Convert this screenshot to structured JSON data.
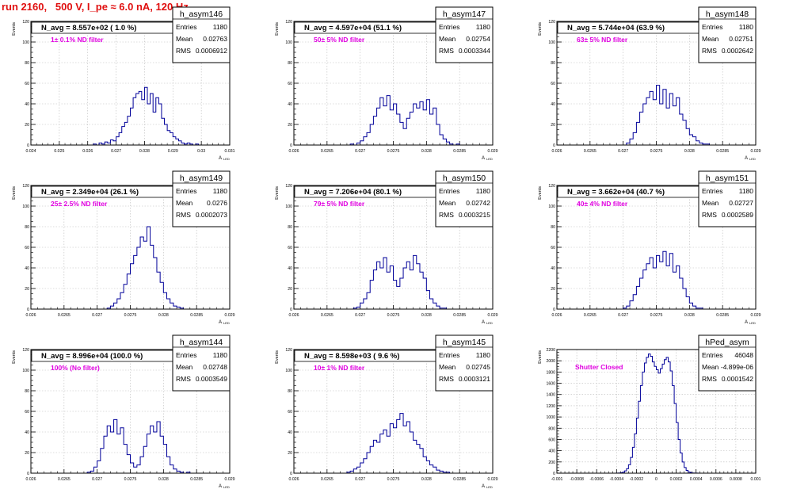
{
  "page": {
    "run_title": "run 2160,   500 V, I_pe ≈ 6.0 nA, 120 Hz"
  },
  "colors": {
    "histogram_line": "#000099",
    "annotation_magenta": "#e000e0",
    "title_red": "#e01010",
    "grid": "#bbbbbb"
  },
  "chart_data": [
    {
      "type": "histogram",
      "name": "h_asym146",
      "navg": "N_avg = 8.557e+02 ( 1.0 %)",
      "filter_label": "1± 0.1% ND filter",
      "stats": {
        "Entries": "1180",
        "Mean": "0.02763",
        "RMS": "0.0006912"
      },
      "stats_labels": [
        "Entries",
        "Mean",
        "RMS"
      ],
      "ylabel": "Events",
      "xlabel": "A",
      "xlabel_sub": "LED",
      "xlim": [
        0.024,
        0.031
      ],
      "ylim": [
        0,
        120
      ],
      "xticks": [
        "0.024",
        "0.025",
        "0.026",
        "0.027",
        "0.028",
        "0.029",
        "0.03",
        "0.031"
      ],
      "xtick_values": [
        0.024,
        0.025,
        0.026,
        0.027,
        0.028,
        0.029,
        0.03,
        0.031
      ],
      "yticks": [
        "0",
        "20",
        "40",
        "60",
        "80",
        "100",
        "120"
      ],
      "ytick_values": [
        0,
        20,
        40,
        60,
        80,
        100,
        120
      ],
      "bins": {
        "start": 0.024,
        "width": 0.0001,
        "values": [
          0,
          0,
          0,
          0,
          0,
          0,
          0,
          0,
          0,
          0,
          0,
          0,
          0,
          0,
          0,
          0,
          0,
          0,
          0,
          0,
          0,
          0,
          1,
          0,
          2,
          1,
          3,
          2,
          5,
          4,
          8,
          12,
          18,
          22,
          28,
          36,
          46,
          50,
          52,
          44,
          56,
          40,
          50,
          32,
          46,
          40,
          26,
          20,
          14,
          12,
          8,
          6,
          4,
          2,
          1,
          2,
          1,
          0,
          1,
          0,
          0,
          0,
          0,
          0,
          0,
          0,
          0,
          0,
          0,
          0
        ]
      }
    },
    {
      "type": "histogram",
      "name": "h_asym147",
      "navg": "N_avg = 4.597e+04 (51.1 %)",
      "filter_label": "50± 5% ND filter",
      "stats": {
        "Entries": "1180",
        "Mean": "0.02754",
        "RMS": "0.0003344"
      },
      "stats_labels": [
        "Entries",
        "Mean",
        "RMS"
      ],
      "ylabel": "Events",
      "xlabel": "A",
      "xlabel_sub": "LED",
      "xlim": [
        0.026,
        0.029
      ],
      "ylim": [
        0,
        120
      ],
      "xticks": [
        "0.026",
        "0.0265",
        "0.027",
        "0.0275",
        "0.028",
        "0.0285",
        "0.029"
      ],
      "xtick_values": [
        0.026,
        0.0265,
        0.027,
        0.0275,
        0.028,
        0.0285,
        0.029
      ],
      "yticks": [
        "0",
        "20",
        "40",
        "60",
        "80",
        "100",
        "120"
      ],
      "ytick_values": [
        0,
        20,
        40,
        60,
        80,
        100,
        120
      ],
      "bins": {
        "start": 0.026,
        "width": 5e-05,
        "values": [
          0,
          0,
          0,
          0,
          0,
          0,
          0,
          0,
          0,
          0,
          0,
          0,
          0,
          0,
          0,
          0,
          0,
          1,
          0,
          2,
          4,
          8,
          12,
          20,
          28,
          36,
          46,
          38,
          48,
          34,
          40,
          30,
          22,
          16,
          26,
          32,
          40,
          36,
          42,
          34,
          44,
          30,
          36,
          20,
          10,
          6,
          3,
          1,
          0,
          1,
          0,
          0,
          0,
          0,
          0,
          0,
          0,
          0,
          0,
          0
        ]
      }
    },
    {
      "type": "histogram",
      "name": "h_asym148",
      "navg": "N_avg = 5.744e+04 (63.9 %)",
      "filter_label": "63± 5% ND filter",
      "stats": {
        "Entries": "1180",
        "Mean": "0.02751",
        "RMS": "0.0002642"
      },
      "stats_labels": [
        "Entries",
        "Mean",
        "RMS"
      ],
      "ylabel": "Events",
      "xlabel": "A",
      "xlabel_sub": "LED",
      "xlim": [
        0.026,
        0.029
      ],
      "ylim": [
        0,
        120
      ],
      "xticks": [
        "0.026",
        "0.0265",
        "0.027",
        "0.0275",
        "0.028",
        "0.0285",
        "0.029"
      ],
      "xtick_values": [
        0.026,
        0.0265,
        0.027,
        0.0275,
        0.028,
        0.0285,
        0.029
      ],
      "yticks": [
        "0",
        "20",
        "40",
        "60",
        "80",
        "100",
        "120"
      ],
      "ytick_values": [
        0,
        20,
        40,
        60,
        80,
        100,
        120
      ],
      "bins": {
        "start": 0.026,
        "width": 5e-05,
        "values": [
          0,
          0,
          0,
          0,
          0,
          0,
          0,
          0,
          0,
          0,
          0,
          0,
          0,
          0,
          0,
          0,
          0,
          0,
          0,
          0,
          0,
          2,
          6,
          12,
          22,
          32,
          40,
          46,
          52,
          44,
          58,
          40,
          54,
          36,
          50,
          38,
          46,
          30,
          24,
          16,
          10,
          8,
          4,
          2,
          1,
          1,
          0,
          0,
          0,
          0,
          0,
          0,
          0,
          0,
          0,
          0,
          0,
          0,
          0,
          0
        ]
      }
    },
    {
      "type": "histogram",
      "name": "h_asym149",
      "navg": "N_avg = 2.349e+04 (26.1 %)",
      "filter_label": "25± 2.5% ND filter",
      "stats": {
        "Entries": "1180",
        "Mean": "0.0276",
        "RMS": "0.0002073"
      },
      "stats_labels": [
        "Entries",
        "Mean",
        "RMS"
      ],
      "ylabel": "Events",
      "xlabel": "A",
      "xlabel_sub": "LED",
      "xlim": [
        0.026,
        0.029
      ],
      "ylim": [
        0,
        120
      ],
      "xticks": [
        "0.026",
        "0.0265",
        "0.027",
        "0.0275",
        "0.028",
        "0.0285",
        "0.029"
      ],
      "xtick_values": [
        0.026,
        0.0265,
        0.027,
        0.0275,
        0.028,
        0.0285,
        0.029
      ],
      "yticks": [
        "0",
        "20",
        "40",
        "60",
        "80",
        "100",
        "120"
      ],
      "ytick_values": [
        0,
        20,
        40,
        60,
        80,
        100,
        120
      ],
      "bins": {
        "start": 0.026,
        "width": 5e-05,
        "values": [
          0,
          0,
          0,
          0,
          0,
          0,
          0,
          0,
          0,
          0,
          0,
          0,
          0,
          0,
          0,
          0,
          0,
          0,
          0,
          0,
          0,
          0,
          0,
          1,
          3,
          6,
          10,
          16,
          24,
          34,
          44,
          52,
          60,
          70,
          66,
          80,
          62,
          50,
          36,
          26,
          16,
          10,
          6,
          3,
          2,
          1,
          0,
          0,
          0,
          0,
          0,
          0,
          0,
          0,
          0,
          0,
          0,
          0,
          0,
          0
        ]
      }
    },
    {
      "type": "histogram",
      "name": "h_asym150",
      "navg": "N_avg = 7.206e+04 (80.1 %)",
      "filter_label": "79± 5% ND filter",
      "stats": {
        "Entries": "1180",
        "Mean": "0.02742",
        "RMS": "0.0003215"
      },
      "stats_labels": [
        "Entries",
        "Mean",
        "RMS"
      ],
      "ylabel": "Events",
      "xlabel": "A",
      "xlabel_sub": "LED",
      "xlim": [
        0.026,
        0.029
      ],
      "ylim": [
        0,
        120
      ],
      "xticks": [
        "0.026",
        "0.0265",
        "0.027",
        "0.0275",
        "0.028",
        "0.0285",
        "0.029"
      ],
      "xtick_values": [
        0.026,
        0.0265,
        0.027,
        0.0275,
        0.028,
        0.0285,
        0.029
      ],
      "yticks": [
        "0",
        "20",
        "40",
        "60",
        "80",
        "100",
        "120"
      ],
      "ytick_values": [
        0,
        20,
        40,
        60,
        80,
        100,
        120
      ],
      "bins": {
        "start": 0.026,
        "width": 5e-05,
        "values": [
          0,
          0,
          0,
          0,
          0,
          0,
          0,
          0,
          0,
          0,
          0,
          0,
          0,
          0,
          0,
          0,
          0,
          0,
          1,
          2,
          6,
          10,
          16,
          28,
          38,
          46,
          40,
          50,
          36,
          42,
          28,
          22,
          30,
          40,
          46,
          38,
          52,
          44,
          36,
          30,
          18,
          10,
          6,
          3,
          1,
          1,
          0,
          0,
          0,
          0,
          0,
          0,
          0,
          0,
          0,
          0,
          0,
          0,
          0,
          0
        ]
      }
    },
    {
      "type": "histogram",
      "name": "h_asym151",
      "navg": "N_avg = 3.662e+04 (40.7 %)",
      "filter_label": "40± 4% ND filter",
      "stats": {
        "Entries": "1180",
        "Mean": "0.02727",
        "RMS": "0.0002589"
      },
      "stats_labels": [
        "Entries",
        "Mean",
        "RMS"
      ],
      "ylabel": "Events",
      "xlabel": "A",
      "xlabel_sub": "LED",
      "xlim": [
        0.026,
        0.029
      ],
      "ylim": [
        0,
        120
      ],
      "xticks": [
        "0.026",
        "0.0265",
        "0.027",
        "0.0275",
        "0.028",
        "0.0285",
        "0.029"
      ],
      "xtick_values": [
        0.026,
        0.0265,
        0.027,
        0.0275,
        0.028,
        0.0285,
        0.029
      ],
      "yticks": [
        "0",
        "20",
        "40",
        "60",
        "80",
        "100",
        "120"
      ],
      "ytick_values": [
        0,
        20,
        40,
        60,
        80,
        100,
        120
      ],
      "bins": {
        "start": 0.026,
        "width": 5e-05,
        "values": [
          0,
          0,
          0,
          0,
          0,
          0,
          0,
          0,
          0,
          0,
          0,
          0,
          0,
          0,
          0,
          0,
          0,
          0,
          0,
          0,
          1,
          3,
          8,
          14,
          22,
          30,
          38,
          44,
          50,
          40,
          52,
          46,
          56,
          42,
          54,
          36,
          42,
          30,
          20,
          12,
          6,
          3,
          1,
          1,
          0,
          0,
          0,
          0,
          0,
          0,
          0,
          0,
          0,
          0,
          0,
          0,
          0,
          0,
          0,
          0
        ]
      }
    },
    {
      "type": "histogram",
      "name": "h_asym144",
      "navg": "N_avg = 8.996e+04 (100.0 %)",
      "filter_label": "100% (No filter)",
      "stats": {
        "Entries": "1180",
        "Mean": "0.02748",
        "RMS": "0.0003549"
      },
      "stats_labels": [
        "Entries",
        "Mean",
        "RMS"
      ],
      "ylabel": "Events",
      "xlabel": "A",
      "xlabel_sub": "LED",
      "xlim": [
        0.026,
        0.029
      ],
      "ylim": [
        0,
        120
      ],
      "xticks": [
        "0.026",
        "0.0265",
        "0.027",
        "0.0275",
        "0.028",
        "0.0285",
        "0.029"
      ],
      "xtick_values": [
        0.026,
        0.0265,
        0.027,
        0.0275,
        0.028,
        0.0285,
        0.029
      ],
      "yticks": [
        "0",
        "20",
        "40",
        "60",
        "80",
        "100",
        "120"
      ],
      "ytick_values": [
        0,
        20,
        40,
        60,
        80,
        100,
        120
      ],
      "bins": {
        "start": 0.026,
        "width": 5e-05,
        "values": [
          0,
          0,
          0,
          0,
          0,
          0,
          0,
          0,
          0,
          0,
          0,
          0,
          0,
          0,
          0,
          0,
          0,
          1,
          2,
          6,
          12,
          24,
          36,
          46,
          40,
          52,
          38,
          44,
          28,
          18,
          10,
          6,
          8,
          16,
          26,
          38,
          46,
          40,
          50,
          36,
          28,
          16,
          8,
          4,
          2,
          1,
          0,
          1,
          0,
          0,
          0,
          0,
          0,
          0,
          0,
          0,
          0,
          0,
          0,
          0
        ]
      }
    },
    {
      "type": "histogram",
      "name": "h_asym145",
      "navg": "N_avg = 8.598e+03 ( 9.6 %)",
      "filter_label": "10± 1% ND filter",
      "stats": {
        "Entries": "1180",
        "Mean": "0.02745",
        "RMS": "0.0003121"
      },
      "stats_labels": [
        "Entries",
        "Mean",
        "RMS"
      ],
      "ylabel": "Events",
      "xlabel": "A",
      "xlabel_sub": "LED",
      "xlim": [
        0.026,
        0.029
      ],
      "ylim": [
        0,
        120
      ],
      "xticks": [
        "0.026",
        "0.0265",
        "0.027",
        "0.0275",
        "0.028",
        "0.0285",
        "0.029"
      ],
      "xtick_values": [
        0.026,
        0.0265,
        0.027,
        0.0275,
        0.028,
        0.0285,
        0.029
      ],
      "yticks": [
        "0",
        "20",
        "40",
        "60",
        "80",
        "100",
        "120"
      ],
      "ytick_values": [
        0,
        20,
        40,
        60,
        80,
        100,
        120
      ],
      "bins": {
        "start": 0.026,
        "width": 5e-05,
        "values": [
          0,
          0,
          0,
          0,
          0,
          0,
          0,
          0,
          0,
          0,
          0,
          0,
          0,
          0,
          0,
          0,
          1,
          2,
          4,
          6,
          10,
          14,
          20,
          26,
          32,
          30,
          38,
          42,
          36,
          48,
          44,
          52,
          58,
          46,
          50,
          40,
          32,
          28,
          24,
          16,
          12,
          8,
          6,
          3,
          2,
          1,
          1,
          0,
          0,
          0,
          0,
          0,
          0,
          0,
          0,
          0,
          0,
          0,
          0,
          0
        ]
      }
    },
    {
      "type": "histogram",
      "name": "hPed_asym",
      "navg": "",
      "filter_label": "Shutter Closed",
      "stats": {
        "Entries": "46048",
        "Mean": "-4.899e-06",
        "RMS": "0.0001542"
      },
      "stats_labels": [
        "Entries",
        "Mean",
        "RMS"
      ],
      "ylabel": "Events",
      "xlabel": "",
      "xlabel_sub": "",
      "xlim": [
        -0.001,
        0.001
      ],
      "ylim": [
        0,
        2200
      ],
      "xticks": [
        "-0.001",
        "-0.0008",
        "-0.0006",
        "-0.0004",
        "-0.0002",
        "0",
        "0.0002",
        "0.0004",
        "0.0006",
        "0.0008",
        "0.001"
      ],
      "xtick_values": [
        -0.001,
        -0.0008,
        -0.0006,
        -0.0004,
        -0.0002,
        0,
        0.0002,
        0.0004,
        0.0006,
        0.0008,
        0.001
      ],
      "yticks": [
        "0",
        "200",
        "400",
        "600",
        "800",
        "1000",
        "1200",
        "1400",
        "1600",
        "1800",
        "2000",
        "2200"
      ],
      "ytick_values": [
        0,
        200,
        400,
        600,
        800,
        1000,
        1200,
        1400,
        1600,
        1800,
        2000,
        2200
      ],
      "bins": {
        "start": -0.001,
        "width": 2e-05,
        "values": [
          0,
          0,
          0,
          0,
          0,
          0,
          0,
          0,
          0,
          0,
          0,
          0,
          0,
          0,
          0,
          0,
          0,
          0,
          0,
          0,
          0,
          0,
          0,
          0,
          0,
          0,
          0,
          0,
          0,
          0,
          1,
          3,
          8,
          18,
          40,
          80,
          150,
          280,
          460,
          700,
          980,
          1280,
          1560,
          1800,
          1960,
          2060,
          2120,
          2080,
          1980,
          1900,
          1840,
          1780,
          1860,
          1940,
          2020,
          2060,
          1980,
          1820,
          1560,
          1240,
          900,
          600,
          360,
          200,
          100,
          50,
          22,
          10,
          4,
          2,
          1,
          0,
          0,
          0,
          0,
          0,
          0,
          0,
          0,
          0,
          0,
          0,
          0,
          0,
          0,
          0,
          0,
          0,
          0,
          0,
          0,
          0,
          0,
          0,
          0,
          0,
          0,
          0,
          0,
          0
        ]
      }
    }
  ]
}
